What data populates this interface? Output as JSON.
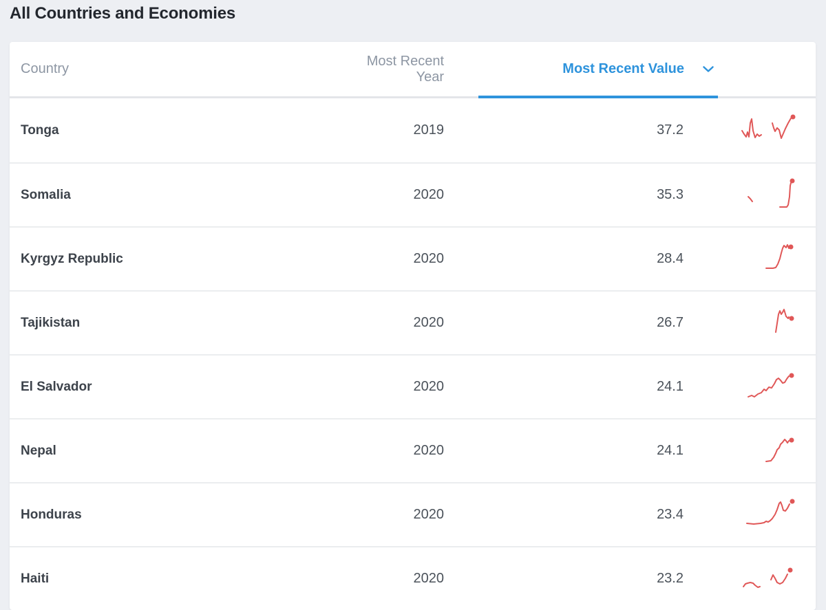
{
  "page": {
    "title": "All Countries and Economies",
    "background_color": "#edeff3"
  },
  "table": {
    "accent_color": "#2e93dc",
    "sparkline_color": "#e05757",
    "columns": [
      {
        "key": "country",
        "label": "Country"
      },
      {
        "key": "year",
        "label": "Most Recent Year"
      },
      {
        "key": "value",
        "label": "Most Recent Value"
      }
    ],
    "sort": {
      "active_column": "Most Recent Value",
      "direction": "desc"
    },
    "rows": [
      {
        "country": "Tonga",
        "year": "2019",
        "value": "37.2",
        "sparkline": {
          "segments": [
            [
              [
                19,
                28
              ],
              [
                22,
                33
              ],
              [
                25,
                37
              ],
              [
                27,
                30
              ],
              [
                29,
                37
              ],
              [
                31,
                17
              ],
              [
                33,
                11
              ],
              [
                35,
                28
              ],
              [
                38,
                38
              ],
              [
                41,
                33
              ],
              [
                44,
                36
              ],
              [
                47,
                34
              ]
            ],
            [
              [
                63,
                17
              ],
              [
                65,
                24
              ],
              [
                67,
                29
              ],
              [
                70,
                24
              ],
              [
                73,
                27
              ],
              [
                76,
                39
              ],
              [
                79,
                32
              ],
              [
                82,
                25
              ],
              [
                86,
                17
              ],
              [
                90,
                10
              ]
            ]
          ],
          "dot": [
            93,
            8
          ]
        }
      },
      {
        "country": "Somalia",
        "year": "2020",
        "value": "35.3",
        "sparkline": {
          "segments": [
            [
              [
                28,
                30
              ],
              [
                31,
                33
              ],
              [
                34,
                37
              ]
            ],
            [
              [
                74,
                45
              ],
              [
                84,
                45
              ],
              [
                86,
                42
              ],
              [
                88,
                30
              ],
              [
                89,
                14
              ],
              [
                90,
                10
              ]
            ]
          ],
          "dot": [
            92,
            7
          ]
        }
      },
      {
        "country": "Kyrgyz Republic",
        "year": "2020",
        "value": "28.4",
        "sparkline": {
          "segments": [
            [
              [
                54,
                41
              ],
              [
                64,
                41
              ],
              [
                68,
                40
              ],
              [
                71,
                35
              ],
              [
                74,
                27
              ],
              [
                76,
                19
              ],
              [
                78,
                12
              ],
              [
                80,
                8
              ],
              [
                83,
                11
              ],
              [
                85,
                7
              ],
              [
                87,
                12
              ]
            ]
          ],
          "dot": [
            90,
            10
          ]
        }
      },
      {
        "country": "Tajikistan",
        "year": "2020",
        "value": "26.7",
        "sparkline": {
          "segments": [
            [
              [
                68,
                41
              ],
              [
                70,
                28
              ],
              [
                72,
                15
              ],
              [
                74,
                10
              ],
              [
                76,
                15
              ],
              [
                78,
                12
              ],
              [
                80,
                8
              ],
              [
                83,
                18
              ],
              [
                86,
                21
              ],
              [
                87,
                19
              ]
            ]
          ],
          "dot": [
            91,
            21
          ]
        }
      },
      {
        "country": "El Salvador",
        "year": "2020",
        "value": "24.1",
        "sparkline": {
          "segments": [
            [
              [
                28,
                42
              ],
              [
                33,
                40
              ],
              [
                37,
                42
              ],
              [
                42,
                38
              ],
              [
                47,
                36
              ],
              [
                51,
                31
              ],
              [
                54,
                33
              ],
              [
                58,
                28
              ],
              [
                62,
                29
              ],
              [
                66,
                23
              ],
              [
                69,
                17
              ],
              [
                72,
                15
              ],
              [
                75,
                18
              ],
              [
                78,
                22
              ],
              [
                81,
                21
              ],
              [
                84,
                16
              ],
              [
                87,
                12
              ]
            ]
          ],
          "dot": [
            91,
            11
          ]
        }
      },
      {
        "country": "Nepal",
        "year": "2020",
        "value": "24.1",
        "sparkline": {
          "segments": [
            [
              [
                54,
                43
              ],
              [
                61,
                42
              ],
              [
                65,
                37
              ],
              [
                68,
                31
              ],
              [
                70,
                26
              ],
              [
                73,
                23
              ],
              [
                75,
                18
              ],
              [
                78,
                15
              ],
              [
                81,
                11
              ],
              [
                83,
                13
              ],
              [
                85,
                16
              ],
              [
                87,
                13
              ]
            ]
          ],
          "dot": [
            91,
            12
          ]
        }
      },
      {
        "country": "Honduras",
        "year": "2020",
        "value": "23.4",
        "sparkline": {
          "segments": [
            [
              [
                26,
                40
              ],
              [
                36,
                41
              ],
              [
                46,
                40
              ],
              [
                51,
                39
              ],
              [
                54,
                37
              ],
              [
                57,
                38
              ],
              [
                60,
                36
              ],
              [
                63,
                33
              ],
              [
                67,
                27
              ],
              [
                70,
                20
              ],
              [
                73,
                11
              ],
              [
                75,
                9
              ],
              [
                77,
                14
              ],
              [
                79,
                21
              ],
              [
                82,
                22
              ],
              [
                85,
                18
              ],
              [
                88,
                12
              ]
            ]
          ],
          "dot": [
            92,
            8
          ]
        }
      },
      {
        "country": "Haiti",
        "year": "2020",
        "value": "23.2",
        "sparkline": {
          "segments": [
            [
              [
                21,
                39
              ],
              [
                24,
                35
              ],
              [
                27,
                34
              ],
              [
                31,
                33
              ],
              [
                35,
                34
              ],
              [
                38,
                37
              ],
              [
                42,
                40
              ],
              [
                45,
                39
              ]
            ],
            [
              [
                61,
                29
              ],
              [
                64,
                22
              ],
              [
                67,
                27
              ],
              [
                70,
                33
              ],
              [
                74,
                35
              ],
              [
                78,
                33
              ],
              [
                82,
                27
              ],
              [
                85,
                21
              ]
            ]
          ],
          "dot": [
            89,
            15
          ]
        }
      }
    ]
  }
}
